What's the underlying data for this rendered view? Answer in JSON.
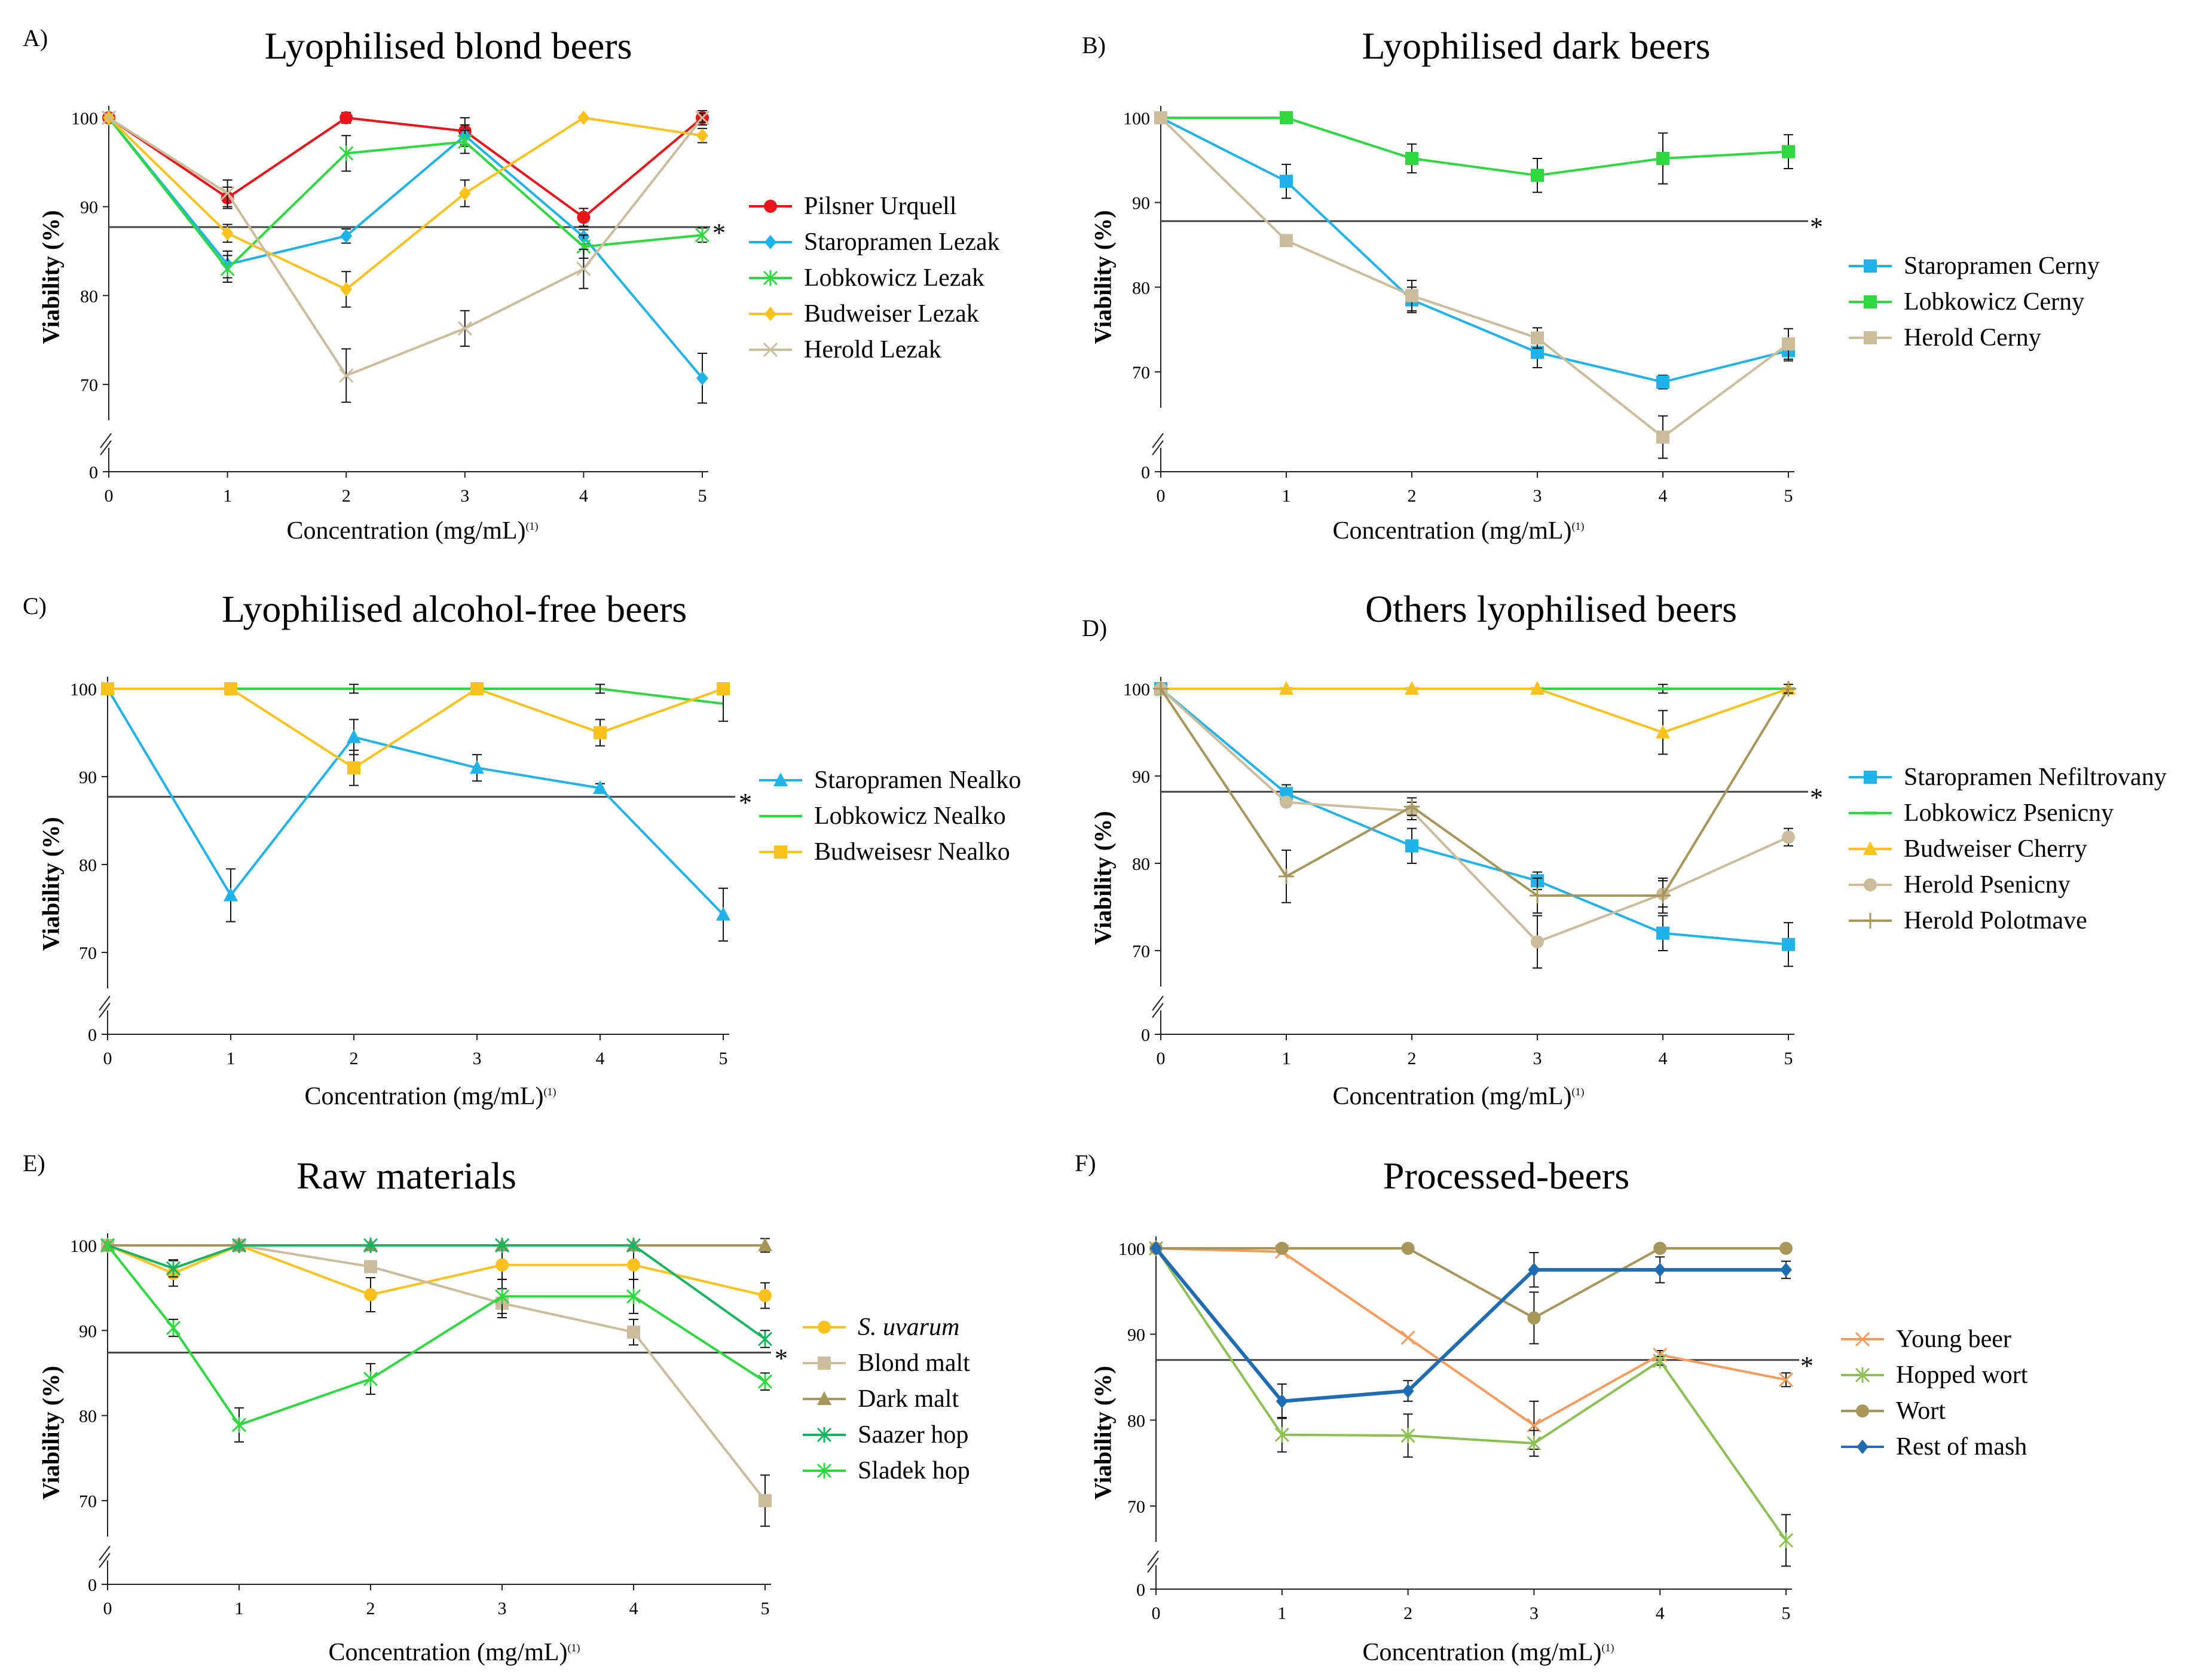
{
  "chart_data": [
    {
      "id": "A",
      "panel_label": "A)",
      "type": "line",
      "title": "Lyophilised blond beers",
      "ylabel": "Viability (%)",
      "xlabel": "Concentration (mg/mL)",
      "xlabel_sup": "(1)",
      "x_ticks": [
        0,
        1,
        2,
        3,
        4,
        5
      ],
      "y_ticks": [
        0,
        70,
        80,
        90,
        100
      ],
      "reference_line": 87.7,
      "reference_marker": "*",
      "series": [
        {
          "name": "Pilsner Urquell",
          "color": "#e8151b",
          "marker": "circle",
          "x": [
            0,
            1,
            2,
            3,
            4,
            5
          ],
          "y": [
            100,
            91,
            100,
            98.5,
            88.8,
            100
          ],
          "err": [
            0,
            1.2,
            0.6,
            1.5,
            1,
            0.8
          ]
        },
        {
          "name": "Staropramen Lezak",
          "color": "#1fb3ea",
          "marker": "diamond",
          "x": [
            0,
            1,
            2,
            3,
            4,
            5
          ],
          "y": [
            100,
            83.5,
            86.7,
            98,
            86.6,
            70.7
          ],
          "err": [
            0,
            1.5,
            0.8,
            1.2,
            0.8,
            2.8
          ]
        },
        {
          "name": "Lobkowicz Lezak",
          "color": "#2fd840",
          "marker": "star",
          "x": [
            0,
            1,
            2,
            3,
            4,
            5
          ],
          "y": [
            100,
            83,
            96,
            97.3,
            85.5,
            86.8
          ],
          "err": [
            0,
            1.5,
            2,
            1.3,
            1.3,
            0.8
          ]
        },
        {
          "name": "Budweiser Lezak",
          "color": "#fbc21d",
          "marker": "diamond",
          "x": [
            0,
            1,
            2,
            3,
            4,
            5
          ],
          "y": [
            100,
            87,
            80.7,
            91.5,
            100,
            98
          ],
          "err": [
            0,
            1,
            2,
            1.5,
            0,
            0.8
          ]
        },
        {
          "name": "Herold Lezak",
          "color": "#cbbc9c",
          "marker": "x",
          "x": [
            0,
            1,
            2,
            3,
            4,
            5
          ],
          "y": [
            100,
            91.5,
            71,
            76.3,
            83,
            100
          ],
          "err": [
            0,
            1.5,
            3,
            2,
            2.2,
            0.5
          ]
        }
      ]
    },
    {
      "id": "B",
      "panel_label": "B)",
      "type": "line",
      "title": "Lyophilised dark beers",
      "ylabel": "Viability (%)",
      "xlabel": "Concentration (mg/mL)",
      "xlabel_sup": "(1)",
      "x_ticks": [
        0,
        1,
        2,
        3,
        4,
        5
      ],
      "y_ticks": [
        0,
        70,
        80,
        90,
        100
      ],
      "reference_line": 87.8,
      "reference_marker": "*",
      "series": [
        {
          "name": "Staropramen Cerny",
          "color": "#1fb3ea",
          "marker": "square",
          "x": [
            0,
            1,
            2,
            3,
            4,
            5
          ],
          "y": [
            100,
            92.5,
            78.5,
            72.3,
            68.8,
            72.5
          ],
          "err": [
            0,
            2,
            1.5,
            1.8,
            0.8,
            1.2
          ]
        },
        {
          "name": "Lobkowicz Cerny",
          "color": "#2fd840",
          "marker": "square",
          "x": [
            0,
            1,
            2,
            3,
            4,
            5
          ],
          "y": [
            100,
            100,
            95.2,
            93.2,
            95.2,
            96
          ],
          "err": [
            0,
            0,
            1.7,
            2,
            3,
            2
          ]
        },
        {
          "name": "Herold Cerny",
          "color": "#cbbc9c",
          "marker": "square",
          "x": [
            0,
            1,
            2,
            3,
            4,
            5
          ],
          "y": [
            100,
            85.5,
            79,
            74,
            62.3,
            73.3
          ],
          "err": [
            0,
            0,
            1.8,
            1.2,
            2.5,
            1.8
          ]
        }
      ]
    },
    {
      "id": "C",
      "panel_label": "C)",
      "type": "line",
      "title": "Lyophilised alcohol-free beers",
      "ylabel": "Viability (%)",
      "xlabel": "Concentration (mg/mL)",
      "xlabel_sup": "(1)",
      "x_ticks": [
        0,
        1,
        2,
        3,
        4,
        5
      ],
      "y_ticks": [
        0,
        70,
        80,
        90,
        100
      ],
      "reference_line": 87.7,
      "reference_marker": "*",
      "series": [
        {
          "name": "Staropramen Nealko",
          "color": "#1fb3ea",
          "marker": "triangle",
          "x": [
            0,
            1,
            2,
            3,
            4,
            5
          ],
          "y": [
            100,
            76.5,
            94.5,
            91,
            88.7,
            74.3
          ],
          "err": [
            0,
            3,
            2,
            1.5,
            0.5,
            3
          ]
        },
        {
          "name": "Lobkowicz Nealko",
          "color": "#2fd840",
          "marker": "none",
          "x": [
            0,
            1,
            2,
            3,
            4,
            5
          ],
          "y": [
            100,
            100,
            100,
            100,
            100,
            98.3
          ],
          "err": [
            0,
            0,
            0.5,
            0,
            0.5,
            2
          ]
        },
        {
          "name": "Budweisesr Nealko",
          "color": "#fbc21d",
          "marker": "square",
          "x": [
            0,
            1,
            2,
            3,
            4,
            5
          ],
          "y": [
            100,
            100,
            91,
            100,
            95,
            100
          ],
          "err": [
            0,
            0,
            2,
            0,
            1.5,
            0
          ]
        }
      ]
    },
    {
      "id": "D",
      "panel_label": "D)",
      "type": "line",
      "title": "Others lyophilised beers",
      "ylabel": "Viability (%)",
      "xlabel": "Concentration (mg/mL)",
      "xlabel_sup": "(1)",
      "x_ticks": [
        0,
        1,
        2,
        3,
        4,
        5
      ],
      "y_ticks": [
        0,
        70,
        80,
        90,
        100
      ],
      "reference_line": 88.2,
      "reference_marker": "*",
      "series": [
        {
          "name": "Staropramen Nefiltrovany",
          "color": "#1fb3ea",
          "marker": "square",
          "x": [
            0,
            1,
            2,
            3,
            4,
            5
          ],
          "y": [
            100,
            88,
            82,
            78,
            72,
            70.7
          ],
          "err": [
            0,
            1,
            2,
            1,
            2,
            2.5
          ]
        },
        {
          "name": "Lobkowicz Psenicny",
          "color": "#2fd840",
          "marker": "dash",
          "x": [
            0,
            1,
            2,
            3,
            4,
            5
          ],
          "y": [
            100,
            100,
            100,
            100,
            100,
            100
          ],
          "err": [
            0,
            0,
            0,
            0,
            0.5,
            0
          ]
        },
        {
          "name": "Budweiser Cherry",
          "color": "#fbc21d",
          "marker": "triangle",
          "x": [
            0,
            1,
            2,
            3,
            4,
            5
          ],
          "y": [
            100,
            100,
            100,
            100,
            95,
            100
          ],
          "err": [
            0,
            0,
            0,
            0,
            2.5,
            0
          ]
        },
        {
          "name": "Herold Psenicny",
          "color": "#cbbc9c",
          "marker": "circle",
          "x": [
            0,
            1,
            2,
            3,
            4,
            5
          ],
          "y": [
            100,
            87,
            86,
            71,
            76.5,
            83
          ],
          "err": [
            0,
            0,
            1,
            3,
            1.5,
            1
          ]
        },
        {
          "name": "Herold Polotmave",
          "color": "#a7955a",
          "marker": "plus",
          "x": [
            0,
            1,
            2,
            3,
            4,
            5
          ],
          "y": [
            100,
            78.5,
            86.5,
            76.3,
            76.3,
            100
          ],
          "err": [
            0,
            3,
            1,
            2,
            2,
            0.5
          ]
        }
      ]
    },
    {
      "id": "E",
      "panel_label": "E)",
      "type": "line",
      "title": "Raw materials",
      "ylabel": "Viability (%)",
      "xlabel": "Concentration (mg/mL)",
      "xlabel_sup": "(1)",
      "x_ticks": [
        0,
        1,
        2,
        3,
        4,
        5
      ],
      "y_ticks": [
        0,
        70,
        80,
        90,
        100
      ],
      "reference_line": 87.4,
      "reference_marker": "*",
      "series": [
        {
          "name": "S. uvarum",
          "italic": true,
          "color": "#fbc21d",
          "marker": "circle",
          "x": [
            0,
            0.5,
            1,
            2,
            3,
            4,
            5
          ],
          "y": [
            100,
            96.7,
            100,
            94.2,
            97.7,
            97.7,
            94.1
          ],
          "err": [
            0,
            1.5,
            0.5,
            2,
            1.7,
            1.7,
            1.5
          ]
        },
        {
          "name": "Blond malt",
          "color": "#cbbc9c",
          "marker": "square",
          "x": [
            0,
            1,
            2,
            3,
            4,
            5
          ],
          "y": [
            100,
            100,
            97.5,
            93.2,
            89.8,
            70
          ],
          "err": [
            0,
            0,
            0.5,
            1.7,
            1.5,
            3
          ]
        },
        {
          "name": "Dark malt",
          "color": "#a7955a",
          "marker": "triangle",
          "x": [
            0,
            1,
            2,
            3,
            4,
            5
          ],
          "y": [
            100,
            100,
            100,
            100,
            100,
            100
          ],
          "err": [
            0,
            0,
            0,
            0,
            0,
            0.8
          ]
        },
        {
          "name": "Saazer hop",
          "color": "#19b45f",
          "marker": "star",
          "x": [
            0,
            0.5,
            1,
            2,
            3,
            4,
            5
          ],
          "y": [
            100,
            97.3,
            100,
            100,
            100,
            100,
            89
          ],
          "err": [
            0,
            1,
            0,
            0,
            0,
            0,
            1
          ]
        },
        {
          "name": "Sladek hop",
          "color": "#2fd840",
          "marker": "star",
          "x": [
            0,
            0.5,
            1,
            2,
            3,
            4,
            5
          ],
          "y": [
            100,
            90.3,
            78.9,
            84.3,
            94,
            94,
            84
          ],
          "err": [
            0,
            1,
            2,
            1.8,
            2,
            2,
            1
          ]
        }
      ]
    },
    {
      "id": "F",
      "panel_label": "F)",
      "type": "line",
      "title": "Processed-beers",
      "ylabel": "Viability (%)",
      "xlabel": "Concentration (mg/mL)",
      "xlabel_sup": "(1)",
      "x_ticks": [
        0,
        1,
        2,
        3,
        4,
        5
      ],
      "y_ticks": [
        0,
        70,
        80,
        90,
        100
      ],
      "reference_line": 87,
      "reference_marker": "*",
      "series": [
        {
          "name": "Young beer",
          "color": "#f59b5c",
          "marker": "x",
          "x": [
            0,
            1,
            2,
            3,
            4,
            5
          ],
          "y": [
            100,
            99.6,
            89.6,
            79.4,
            87.6,
            84.7
          ],
          "err": [
            0,
            0,
            0,
            2.8,
            0.5,
            0.8
          ]
        },
        {
          "name": "Hopped wort",
          "color": "#8cc053",
          "marker": "star",
          "x": [
            0,
            1,
            2,
            3,
            4,
            5
          ],
          "y": [
            100,
            78.3,
            78.2,
            77.3,
            86.9,
            66
          ],
          "err": [
            0,
            2,
            2.5,
            1.5,
            0.5,
            3
          ]
        },
        {
          "name": "Wort",
          "color": "#a7955a",
          "marker": "circle",
          "x": [
            0,
            1,
            2,
            3,
            4,
            5
          ],
          "y": [
            100,
            100,
            100,
            91.9,
            100,
            100
          ],
          "err": [
            0,
            0,
            0,
            3,
            0,
            0
          ]
        },
        {
          "name": "Rest of mash",
          "color": "#1f6cb2",
          "marker": "diamond",
          "x": [
            0,
            1,
            2,
            3,
            4,
            5
          ],
          "y": [
            100,
            82.2,
            83.4,
            97.5,
            97.5,
            97.5
          ],
          "err": [
            0,
            2,
            1.2,
            2,
            1.5,
            1
          ]
        }
      ]
    }
  ]
}
